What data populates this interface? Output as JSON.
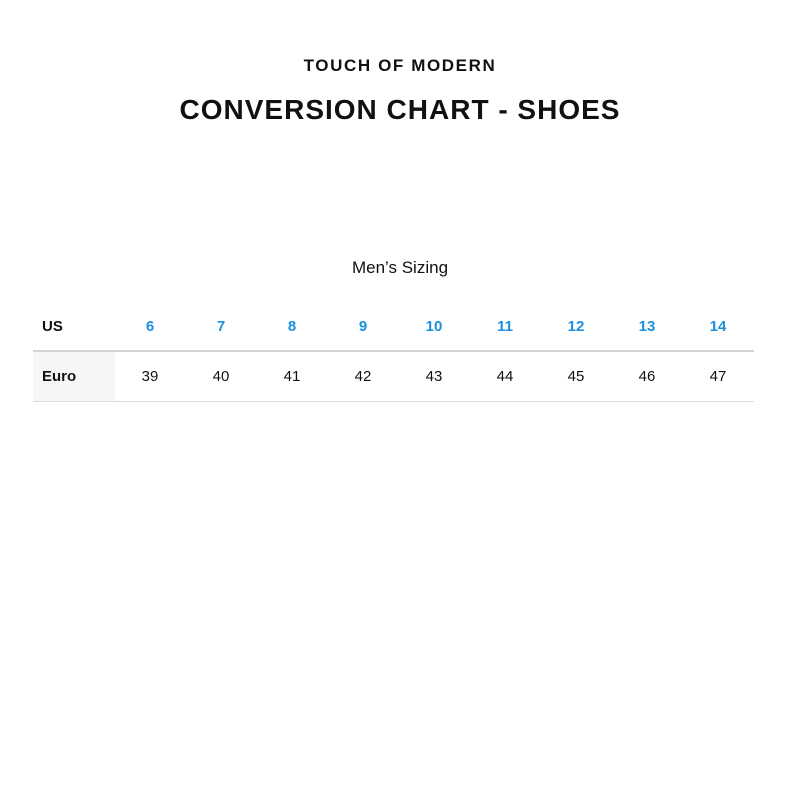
{
  "brand": "TOUCH OF MODERN",
  "title": "CONVERSION CHART - SHOES",
  "subtitle": "Men’s Sizing",
  "accent_color": "#1a8fe0",
  "table": {
    "rows": [
      {
        "label": "US",
        "values": [
          "6",
          "7",
          "8",
          "9",
          "10",
          "11",
          "12",
          "13",
          "14"
        ]
      },
      {
        "label": "Euro",
        "values": [
          "39",
          "40",
          "41",
          "42",
          "43",
          "44",
          "45",
          "46",
          "47"
        ]
      }
    ]
  }
}
